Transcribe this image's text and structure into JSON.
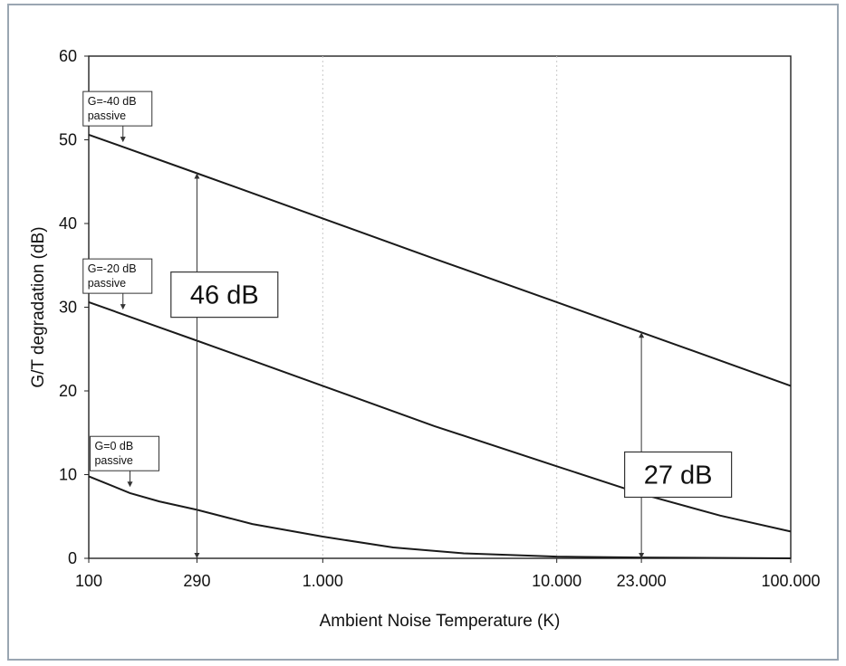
{
  "chart_data": {
    "type": "line",
    "title": "",
    "xlabel": "Ambient Noise Temperature (K)",
    "ylabel": "G/T degradation (dB)",
    "x_scale": "log",
    "xlim": [
      100,
      100000
    ],
    "ylim": [
      0,
      60
    ],
    "x_ticks": [
      {
        "value": 100,
        "label": "100"
      },
      {
        "value": 290,
        "label": "290"
      },
      {
        "value": 1000,
        "label": "1.000"
      },
      {
        "value": 10000,
        "label": "10.000"
      },
      {
        "value": 23000,
        "label": "23.000"
      },
      {
        "value": 100000,
        "label": "100.000"
      }
    ],
    "y_ticks": [
      {
        "value": 0,
        "label": "0"
      },
      {
        "value": 10,
        "label": "10"
      },
      {
        "value": 20,
        "label": "20"
      },
      {
        "value": 30,
        "label": "30"
      },
      {
        "value": 40,
        "label": "40"
      },
      {
        "value": 50,
        "label": "50"
      },
      {
        "value": 60,
        "label": "60"
      }
    ],
    "grid": "faint vertical lines at 1.000 and 10.000",
    "series": [
      {
        "label_lines": [
          "G=-40 dB",
          "passive"
        ],
        "label_anchor": {
          "x": 140,
          "y": 49.5
        },
        "points": [
          [
            100,
            50.6
          ],
          [
            290,
            46
          ],
          [
            1000,
            40.6
          ],
          [
            3000,
            35.8
          ],
          [
            10000,
            30.6
          ],
          [
            23000,
            27
          ],
          [
            100000,
            20.6
          ]
        ]
      },
      {
        "label_lines": [
          "G=-20 dB",
          "passive"
        ],
        "label_anchor": {
          "x": 140,
          "y": 29.5
        },
        "points": [
          [
            100,
            30.6
          ],
          [
            200,
            27.6
          ],
          [
            290,
            26
          ],
          [
            1000,
            20.6
          ],
          [
            3000,
            15.8
          ],
          [
            10000,
            11
          ],
          [
            23000,
            7.7
          ],
          [
            50000,
            5.1
          ],
          [
            100000,
            3.2
          ]
        ]
      },
      {
        "label_lines": [
          "G=0 dB",
          "passive"
        ],
        "label_anchor": {
          "x": 150,
          "y": 8.3
        },
        "points": [
          [
            100,
            9.8
          ],
          [
            150,
            7.8
          ],
          [
            200,
            6.8
          ],
          [
            290,
            5.8
          ],
          [
            500,
            4.1
          ],
          [
            1000,
            2.6
          ],
          [
            2000,
            1.3
          ],
          [
            4000,
            0.6
          ],
          [
            10000,
            0.2
          ],
          [
            23000,
            0.1
          ],
          [
            100000,
            0
          ]
        ]
      }
    ],
    "annotations": [
      {
        "text": "46 dB",
        "x_from": 290,
        "y_from": 0,
        "y_to": 46,
        "box_anchor": {
          "x": 380,
          "y": 31.5
        }
      },
      {
        "text": "27 dB",
        "x_from": 23000,
        "y_from": 0,
        "y_to": 27,
        "box_anchor": {
          "x": 33000,
          "y": 10
        }
      }
    ]
  }
}
